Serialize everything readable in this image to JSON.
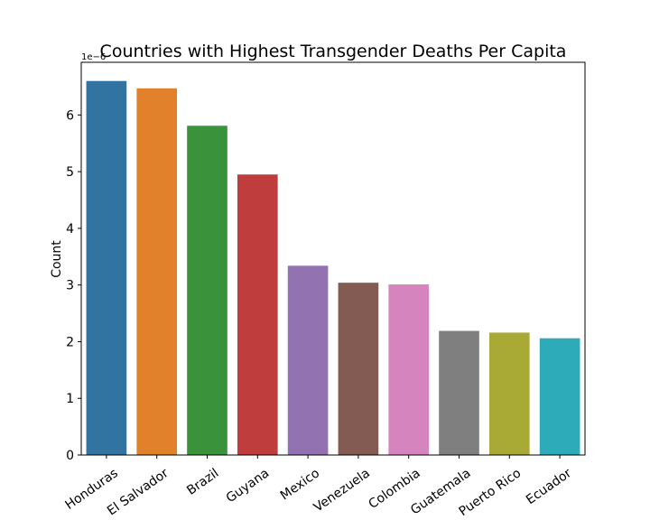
{
  "chart_data": {
    "type": "bar",
    "title": "Countries with Highest Transgender Deaths Per Capita",
    "xlabel": "",
    "ylabel": "Count",
    "y_offset_label": "1e−6",
    "categories": [
      "Honduras",
      "El Salvador",
      "Brazil",
      "Guyana",
      "Mexico",
      "Venezuela",
      "Colombia",
      "Guatemala",
      "Puerto Rico",
      "Ecuador"
    ],
    "values": [
      6.6e-06,
      6.47e-06,
      5.81e-06,
      4.95e-06,
      3.34e-06,
      3.04e-06,
      3.01e-06,
      2.19e-06,
      2.16e-06,
      2.06e-06
    ],
    "colors": [
      "#3274a1",
      "#e1812c",
      "#3a923a",
      "#c03d3e",
      "#9372b2",
      "#845b53",
      "#d684bd",
      "#7f7f7f",
      "#a9aa35",
      "#2eabb8"
    ],
    "ylim": [
      0,
      6.93e-06
    ],
    "yticks": [
      0,
      1,
      2,
      3,
      4,
      5,
      6
    ],
    "ytick_scale": 1e-06,
    "grid": false,
    "legend": "none"
  }
}
